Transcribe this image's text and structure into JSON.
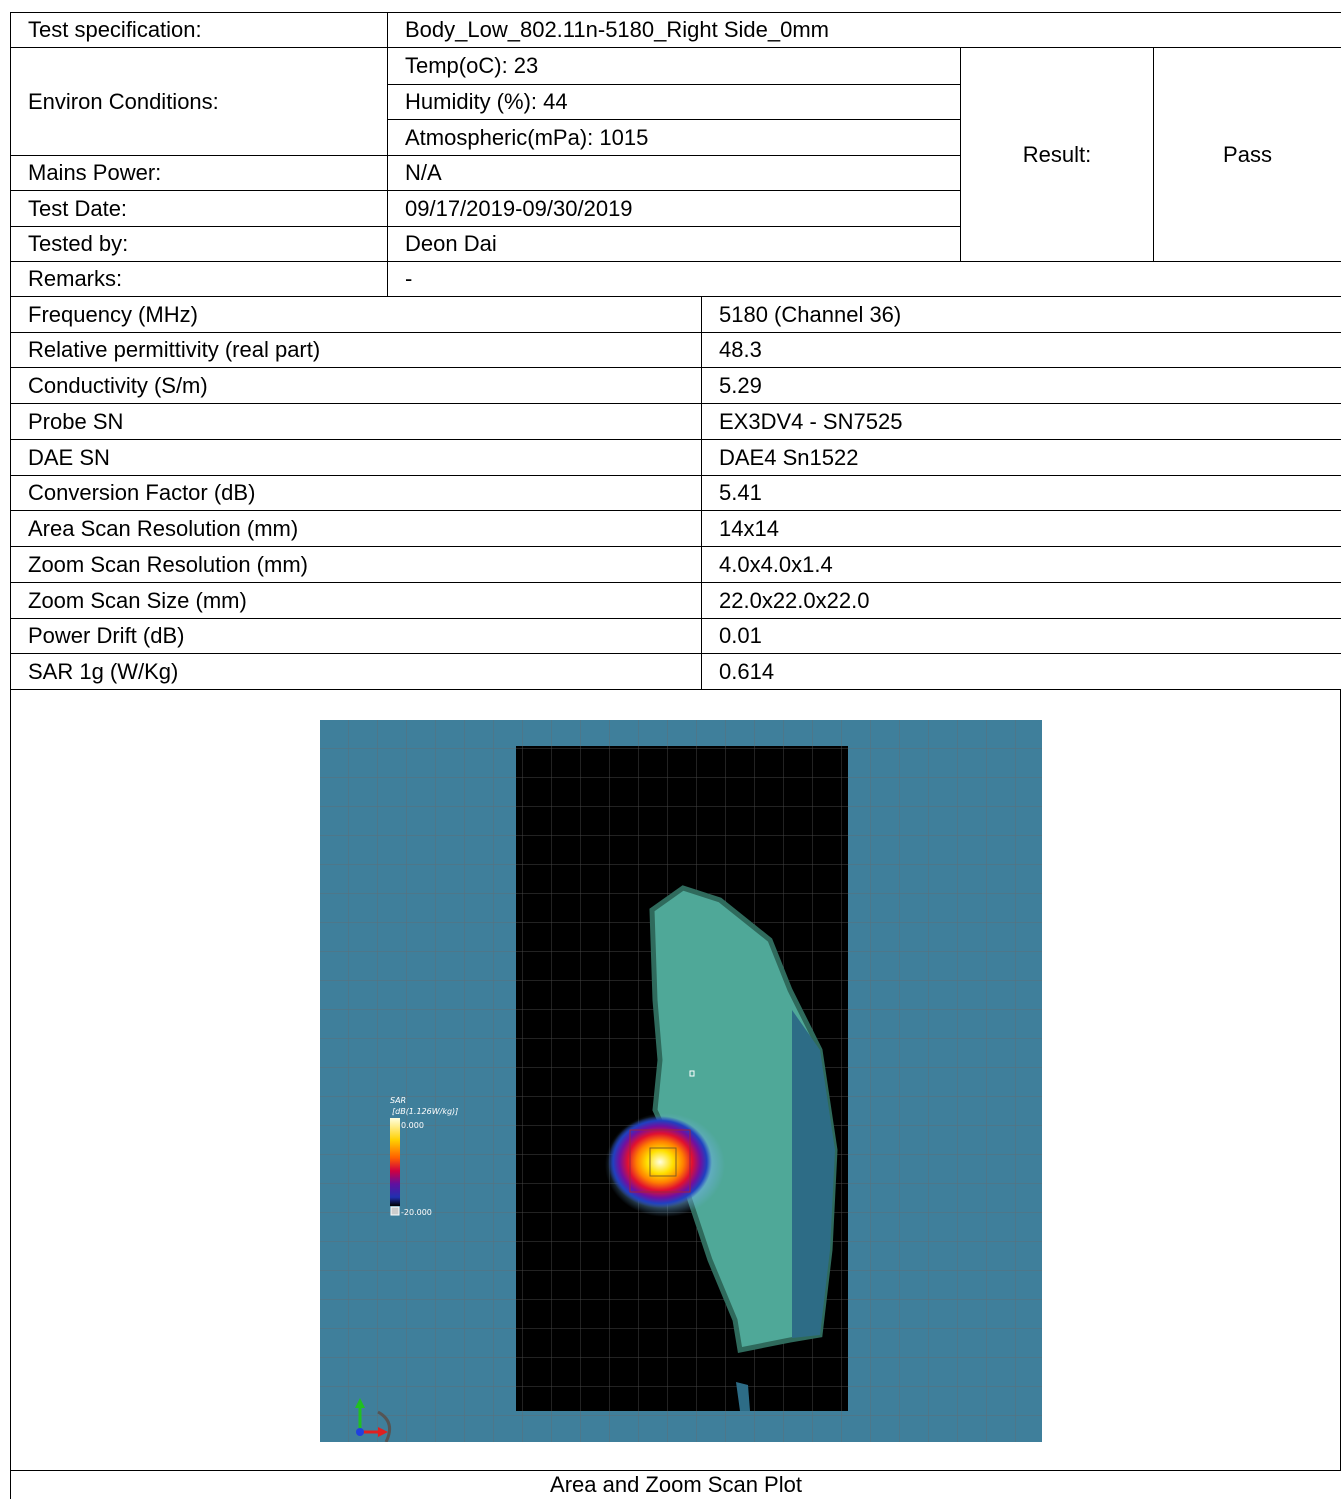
{
  "test_info": {
    "specification": {
      "label": "Test specification:",
      "value": "Body_Low_802.11n-5180_Right Side_0mm"
    },
    "environ": {
      "label": "Environ Conditions:",
      "items": [
        "Temp(oC): 23",
        "Humidity (%): 44",
        "Atmospheric(mPa): 1015"
      ]
    },
    "result": {
      "label": "Result:",
      "value": "Pass"
    },
    "mains": {
      "label": "Mains Power:",
      "value": "N/A"
    },
    "test_date": {
      "label": "Test Date:",
      "value": "09/17/2019-09/30/2019"
    },
    "tested_by": {
      "label": "Tested by:",
      "value": "Deon Dai"
    },
    "remarks": {
      "label": "Remarks:",
      "value": "-"
    }
  },
  "measurements": {
    "rows": [
      [
        "Frequency (MHz)",
        "5180 (Channel 36)"
      ],
      [
        "Relative permittivity (real part)",
        "48.3"
      ],
      [
        "Conductivity (S/m)",
        "5.29"
      ],
      [
        "Probe SN",
        "EX3DV4 - SN7525"
      ],
      [
        "DAE SN",
        "DAE4 Sn1522"
      ],
      [
        "Conversion Factor (dB)",
        "5.41"
      ],
      [
        "Area Scan Resolution (mm)",
        "14x14"
      ],
      [
        "Zoom Scan Resolution (mm)",
        "4.0x4.0x1.4"
      ],
      [
        "Zoom Scan Size (mm)",
        "22.0x22.0x22.0"
      ],
      [
        "Power Drift (dB)",
        "0.01"
      ],
      [
        "SAR 1g (W/Kg)",
        "0.614"
      ]
    ]
  },
  "plot": {
    "legend_title": "SAR",
    "legend_unit": "[dB(1.126W/kg)]",
    "legend_max": "0.000",
    "legend_min": "-20.000",
    "caption": "Area and Zoom Scan Plot"
  }
}
